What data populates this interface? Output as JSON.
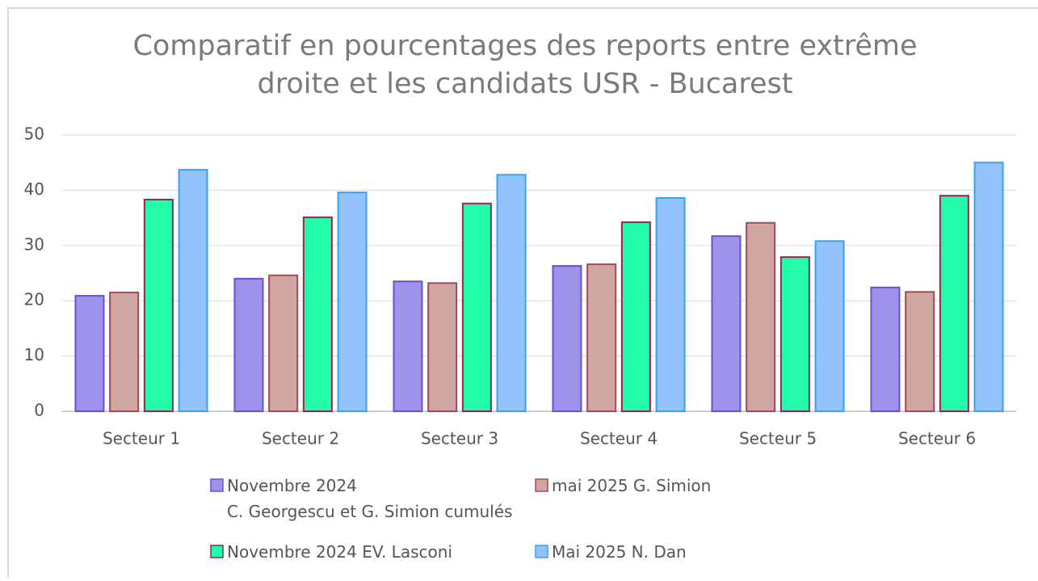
{
  "chart_data": {
    "type": "bar",
    "title": [
      "Comparatif en pourcentages des reports entre extrême",
      "droite et les candidats USR - Bucarest"
    ],
    "categories": [
      "Secteur 1",
      "Secteur 2",
      "Secteur 3",
      "Secteur 4",
      "Secteur 5",
      "Secteur 6"
    ],
    "series": [
      {
        "name": "Novembre 2024\nC. Georgescu et G. Simion cumulés",
        "color": "#9d93ea",
        "border": "#6a4fd3",
        "values": [
          20.9,
          24,
          23.5,
          26.3,
          31.7,
          22.4
        ]
      },
      {
        "name": "mai 2025 G. Simion",
        "color": "#cfa6a0",
        "border": "#a5485c",
        "values": [
          21.5,
          24.6,
          23.2,
          26.6,
          34.1,
          21.6
        ]
      },
      {
        "name": "Novembre 2024 EV. Lasconi",
        "color": "#22fbaa",
        "border": "#9c2352",
        "values": [
          38.3,
          35.1,
          37.6,
          34.2,
          27.9,
          39
        ]
      },
      {
        "name": "Mai 2025 N. Dan",
        "color": "#93c3ff",
        "border": "#3c9ff0",
        "values": [
          43.7,
          39.6,
          42.8,
          38.6,
          30.8,
          45
        ]
      }
    ],
    "ylim": [
      0,
      50
    ],
    "yticks": [
      0,
      10,
      20,
      30,
      40,
      50
    ],
    "grid": true
  }
}
